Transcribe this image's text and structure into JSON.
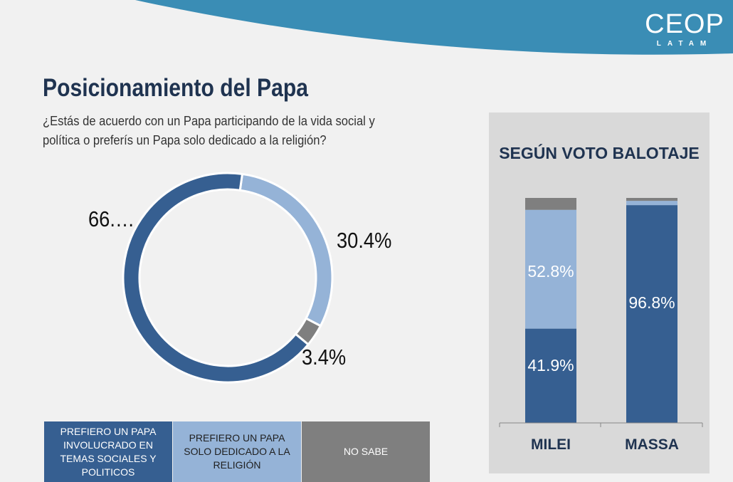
{
  "logo": {
    "name": "CEOP",
    "sub": "LATAM"
  },
  "title": "Posicionamiento del Papa",
  "question": "¿Estás de acuerdo con un Papa participando de la vida social y política o preferís un Papa solo dedicado a la religión?",
  "colors": {
    "involved": "#365f91",
    "religion": "#95b3d7",
    "nosabe": "#7f7f7f",
    "accent": "#3a8db5",
    "title": "#1f3350"
  },
  "chart_data": [
    {
      "type": "pie",
      "donut": true,
      "categories": [
        "PREFIERO UN PAPA INVOLUCRADO EN TEMAS SOCIALES Y POLITICOS",
        "PREFIERO UN PAPA SOLO DEDICADO A LA RELIGIÓN",
        "NO SABE"
      ],
      "values": [
        66.2,
        30.4,
        3.4
      ],
      "labels": [
        "66.…",
        "30.4%",
        "3.4%"
      ],
      "legend": "bottom"
    },
    {
      "type": "bar",
      "stacked": true,
      "title": "SEGÚN VOTO BALOTAJE",
      "categories": [
        "MILEI",
        "MASSA"
      ],
      "series": [
        {
          "name": "PREFIERO UN PAPA INVOLUCRADO EN TEMAS SOCIALES Y POLITICOS",
          "values": [
            41.9,
            96.8
          ],
          "labels": [
            "41.9%",
            "96.8%"
          ]
        },
        {
          "name": "PREFIERO UN PAPA SOLO DEDICADO A LA RELIGIÓN",
          "values": [
            52.8,
            1.9
          ],
          "labels": [
            "52.8%",
            ""
          ]
        },
        {
          "name": "NO SABE",
          "values": [
            5.3,
            1.3
          ],
          "labels": [
            "",
            ""
          ]
        }
      ]
    }
  ]
}
